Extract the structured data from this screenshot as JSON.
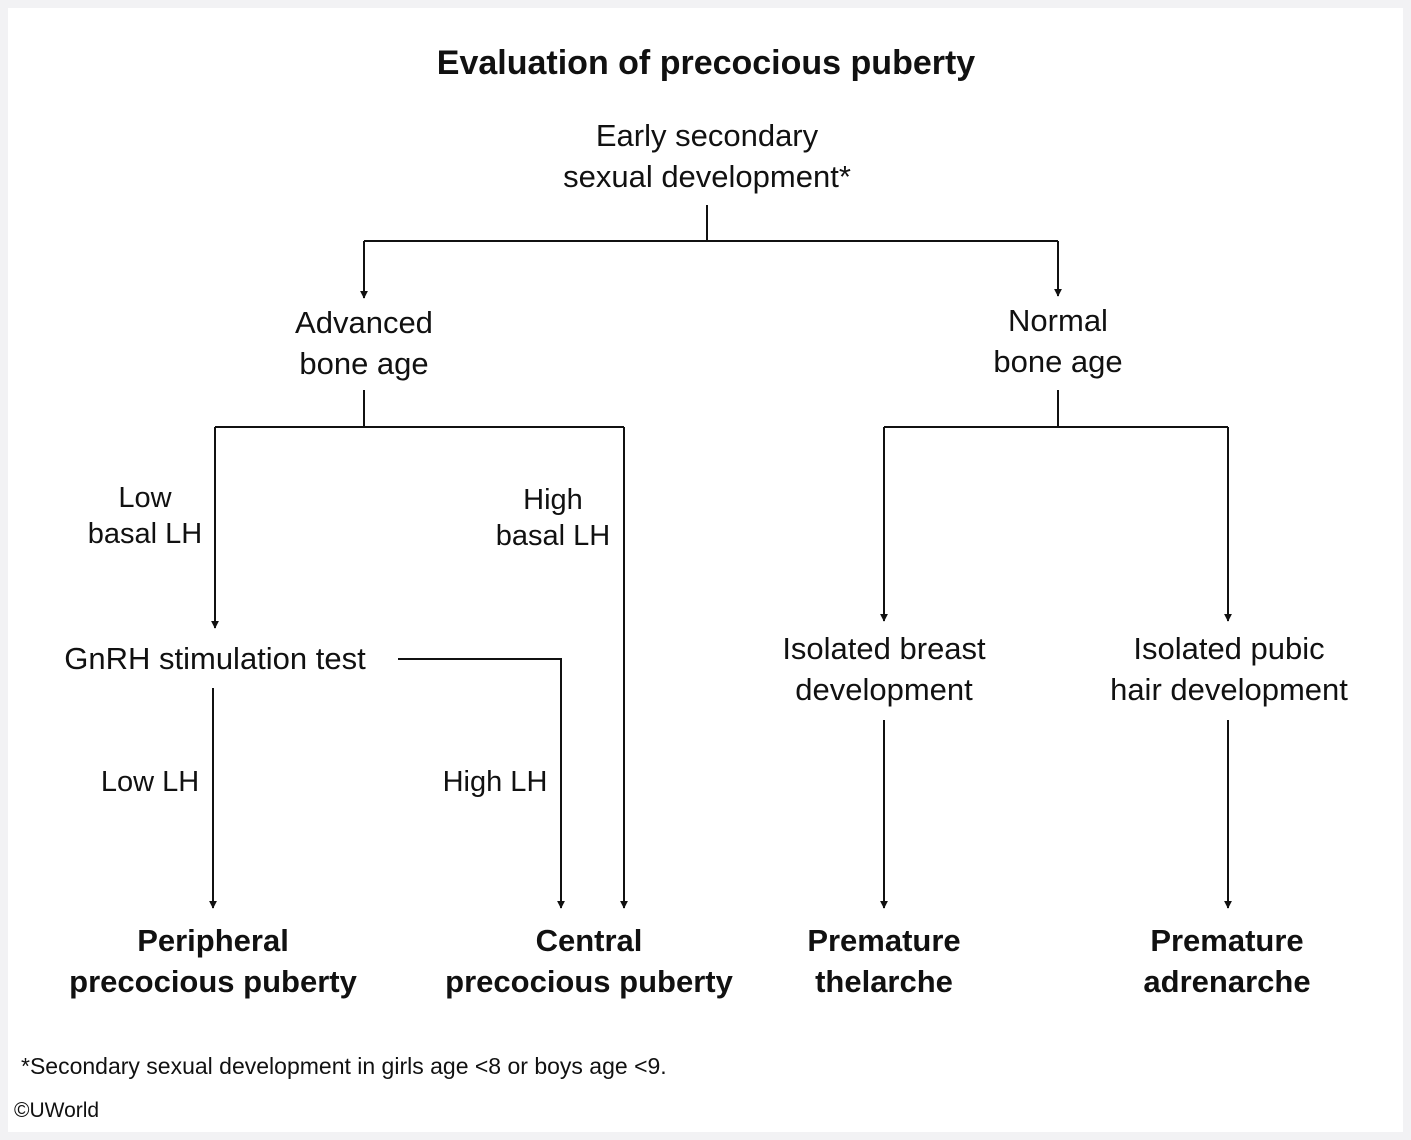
{
  "title": "Evaluation of precocious puberty",
  "nodes": {
    "root": "Early secondary\nsexual development*",
    "advanced_bone_age": "Advanced\nbone age",
    "normal_bone_age": "Normal\nbone age",
    "gnrh_test": "GnRH stimulation test",
    "isolated_breast": "Isolated breast\ndevelopment",
    "isolated_pubic_hair": "Isolated pubic\nhair development"
  },
  "labels": {
    "low_basal_lh": "Low\nbasal LH",
    "high_basal_lh": "High\nbasal LH",
    "low_lh": "Low LH",
    "high_lh": "High LH"
  },
  "outcomes": {
    "peripheral": "Peripheral\nprecocious puberty",
    "central": "Central\nprecocious puberty",
    "thelarche": "Premature\nthelarche",
    "adrenarche": "Premature\nadrenarche"
  },
  "footnote": "*Secondary sexual development in girls age <8 or boys age <9.",
  "copyright": "©UWorld"
}
